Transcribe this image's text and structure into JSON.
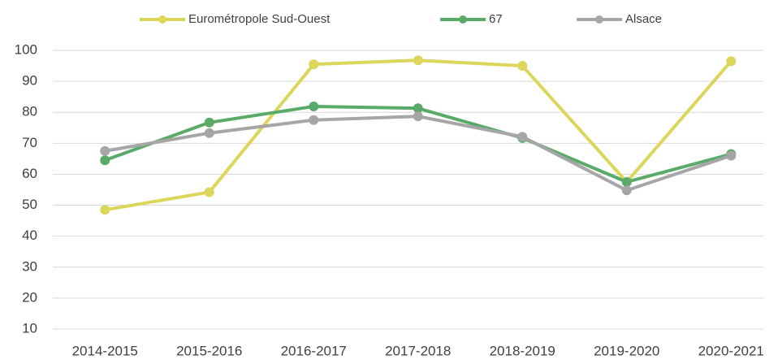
{
  "chart_data": {
    "type": "line",
    "categories": [
      "2014-2015",
      "2015-2016",
      "2016-2017",
      "2017-2018",
      "2018-2019",
      "2019-2020",
      "2020-2021"
    ],
    "series": [
      {
        "name": "Eurométropole Sud-Ouest",
        "color": "#dcd65b",
        "values": [
          48.5,
          54.2,
          95.5,
          96.8,
          95,
          57.5,
          96.5
        ]
      },
      {
        "name": "67",
        "color": "#5aaa6a",
        "values": [
          64.5,
          76.7,
          81.9,
          81.3,
          71.7,
          57.5,
          66.5
        ]
      },
      {
        "name": "Alsace",
        "color": "#a6a6a6",
        "values": [
          67.5,
          73.3,
          77.5,
          78.7,
          72.1,
          54.8,
          66
        ]
      }
    ],
    "ylim": [
      10,
      100
    ],
    "yticks": [
      10,
      20,
      30,
      40,
      50,
      60,
      70,
      80,
      90,
      100
    ],
    "grid": true,
    "legend": "top"
  }
}
